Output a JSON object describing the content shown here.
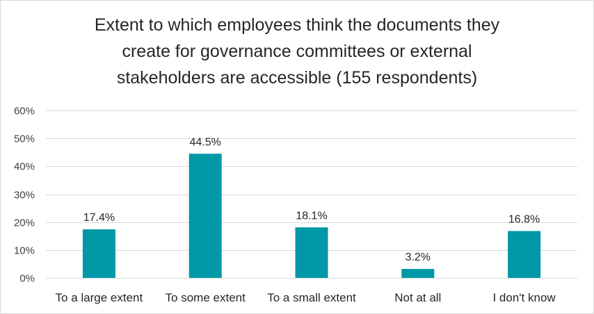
{
  "chart_data": {
    "type": "bar",
    "title_lines": [
      "Extent to which employees think the documents they",
      "create for governance committees or external",
      "stakeholders are accessible (155 respondents)"
    ],
    "categories": [
      "To a large extent",
      "To some extent",
      "To a small extent",
      "Not at all",
      "I don't know"
    ],
    "values": [
      17.4,
      44.5,
      18.1,
      3.2,
      16.8
    ],
    "data_labels": [
      "17.4%",
      "44.5%",
      "18.1%",
      "3.2%",
      "16.8%"
    ],
    "y_ticks": [
      0,
      10,
      20,
      30,
      40,
      50,
      60
    ],
    "y_tick_labels": [
      "0%",
      "10%",
      "20%",
      "30%",
      "40%",
      "50%",
      "60%"
    ],
    "ylim": [
      0,
      60
    ],
    "xlabel": "",
    "ylabel": "",
    "grid": true,
    "legend": "none",
    "colors": {
      "bar": "#0097A7",
      "gridline": "#d9d9d9",
      "text": "#262626",
      "tick_text": "#404040"
    }
  }
}
